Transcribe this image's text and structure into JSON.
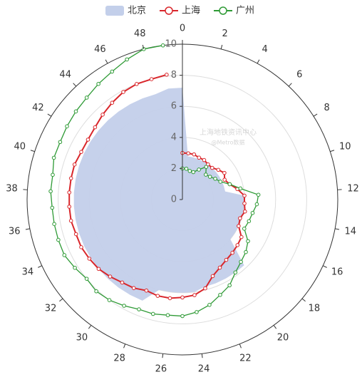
{
  "chart_data": {
    "type": "polar",
    "x": [
      0,
      1,
      2,
      3,
      4,
      5,
      6,
      7,
      8,
      9,
      10,
      11,
      12,
      13,
      14,
      15,
      16,
      17,
      18,
      19,
      20,
      21,
      22,
      23,
      24,
      25,
      26,
      27,
      28,
      29,
      30,
      31,
      32,
      33,
      34,
      35,
      36,
      37,
      38,
      39,
      40,
      41,
      42,
      43,
      44,
      45,
      46,
      47,
      48,
      49
    ],
    "series": [
      {
        "name": "北京",
        "color": "#c3cfea",
        "kind": "area",
        "values": [
          7.2,
          2.8,
          2.8,
          2.8,
          2.8,
          2.8,
          2.8,
          2.8,
          2.8,
          2.8,
          2.8,
          2.8,
          4,
          4,
          4,
          4,
          4,
          4,
          4,
          5.8,
          5.8,
          5.8,
          5.8,
          5.8,
          6,
          6,
          6,
          6,
          7,
          7,
          7,
          7,
          7,
          7,
          7,
          7,
          7,
          7,
          7,
          7,
          7,
          7,
          7,
          7,
          7,
          7,
          7,
          7,
          7,
          7.2
        ]
      },
      {
        "name": "上海",
        "color": "#d9262b",
        "kind": "line",
        "values": [
          3,
          3,
          3,
          2.9,
          2.9,
          2.8,
          2.8,
          3,
          3.2,
          3,
          3.2,
          3.6,
          4,
          4,
          4.1,
          3.9,
          4,
          4.5,
          4.6,
          4.7,
          4.8,
          5,
          5.3,
          5.9,
          6.2,
          6.3,
          6.4,
          6.4,
          6.3,
          6.5,
          6.6,
          6.8,
          7,
          7.1,
          7.2,
          7.2,
          7.3,
          7.3,
          7.3,
          7.3,
          7.3,
          7.2,
          7.2,
          7.3,
          7.5,
          7.7,
          7.9,
          8,
          8,
          8.1
        ]
      },
      {
        "name": "广州",
        "color": "#2e9a35",
        "kind": "line",
        "values": [
          2,
          2,
          1.9,
          1.9,
          2.2,
          2.6,
          2.2,
          2.3,
          2.5,
          2.7,
          3.2,
          3.8,
          4.9,
          4.8,
          4.6,
          4.5,
          4.4,
          5,
          5.3,
          5.5,
          5.8,
          6.3,
          6.6,
          7,
          7.3,
          7.5,
          7.5,
          7.6,
          7.6,
          7.8,
          8,
          8.1,
          8,
          8.2,
          8.4,
          8.4,
          8.4,
          8.4,
          8.5,
          8.5,
          8.7,
          8.7,
          8.8,
          8.9,
          9,
          9.2,
          9.4,
          9.7,
          10,
          10
        ]
      }
    ],
    "xlim": [
      0,
      50
    ],
    "xticks": [
      0,
      2,
      4,
      6,
      8,
      10,
      12,
      14,
      16,
      18,
      20,
      22,
      24,
      26,
      28,
      30,
      32,
      34,
      36,
      38,
      40,
      42,
      44,
      46,
      48
    ],
    "ylim": [
      0,
      10
    ],
    "yticks": [
      0,
      2,
      4,
      6,
      8,
      10
    ],
    "grid": true,
    "legend": "top",
    "watermark": [
      "上海地铁资讯中心",
      "@Metro数据"
    ]
  }
}
